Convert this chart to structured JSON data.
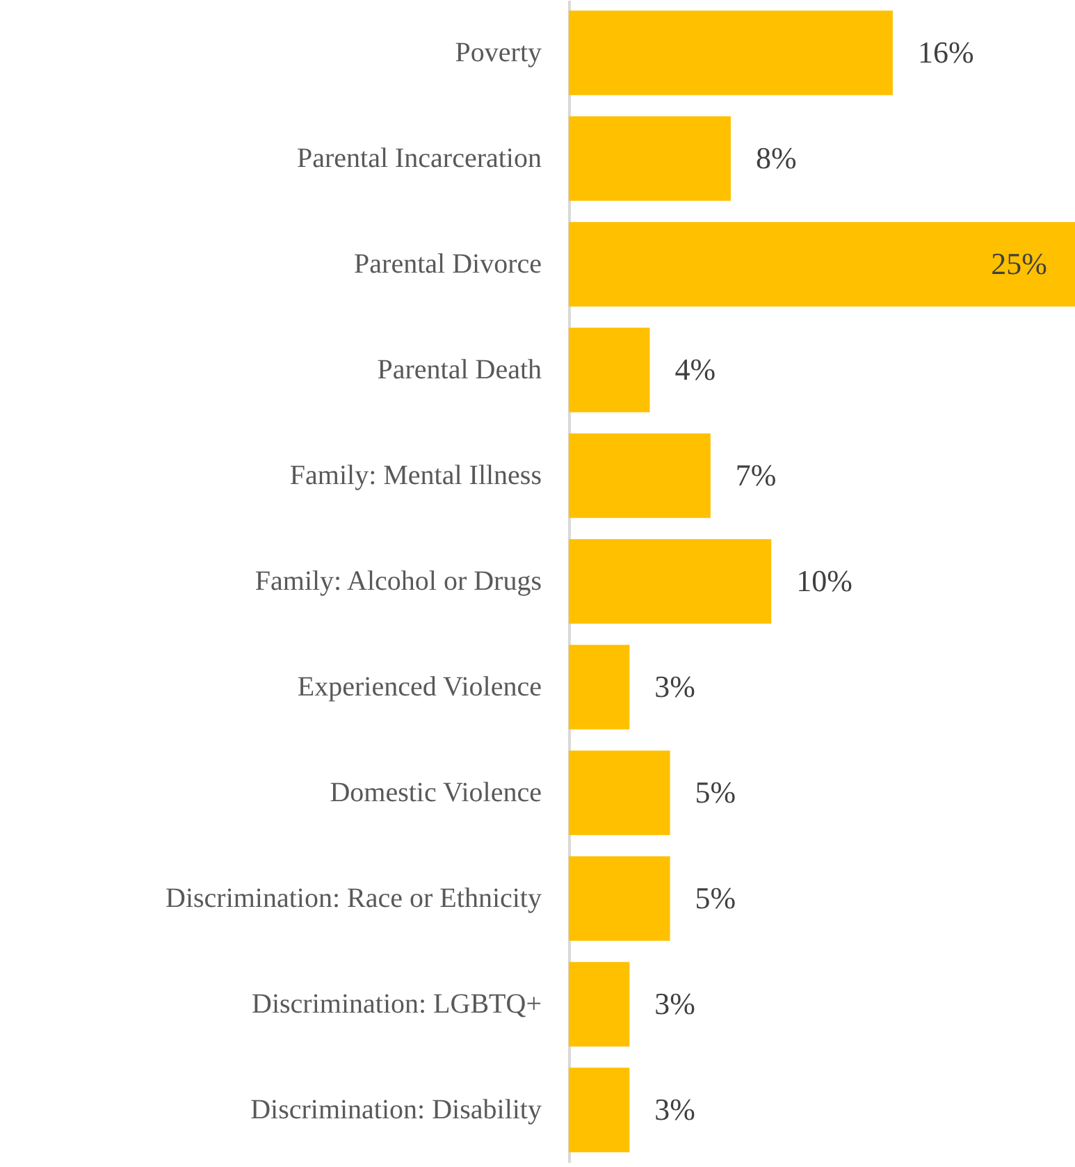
{
  "chart_data": {
    "type": "bar",
    "orientation": "horizontal",
    "categories": [
      "Poverty",
      "Parental Incarceration",
      "Parental Divorce",
      "Parental Death",
      "Family: Mental Illness",
      "Family: Alcohol or Drugs",
      "Experienced Violence",
      "Domestic Violence",
      "Discrimination: Race or Ethnicity",
      "Discrimination: LGBTQ+",
      "Discrimination: Disability"
    ],
    "values": [
      16,
      8,
      25,
      4,
      7,
      10,
      3,
      5,
      5,
      3,
      3
    ],
    "value_labels": [
      "16%",
      "8%",
      "25%",
      "4%",
      "7%",
      "10%",
      "3%",
      "5%",
      "5%",
      "3%",
      "3%"
    ],
    "color": "#ffc000"
  }
}
